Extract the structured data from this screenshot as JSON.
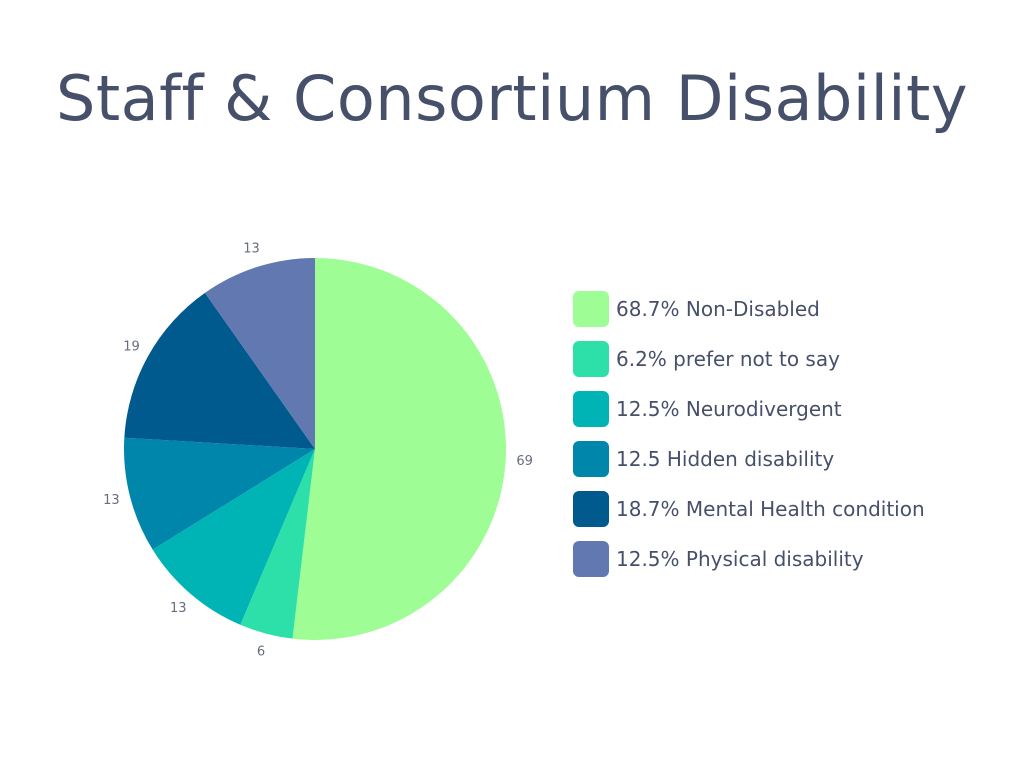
{
  "title": "Staff & Consortium Disability",
  "chart_data": {
    "type": "pie",
    "start_angle_deg": 0,
    "direction": "clockwise",
    "slices": [
      {
        "label": "Non-Disabled",
        "value": 69,
        "value_label": "69",
        "legend": "68.7% Non-Disabled",
        "color": "#9ffd95"
      },
      {
        "label": "prefer not to say",
        "value": 6,
        "value_label": "6",
        "legend": "6.2% prefer not to say",
        "color": "#2de0a9"
      },
      {
        "label": "Neurodivergent",
        "value": 13,
        "value_label": "13",
        "legend": "12.5% Neurodivergent",
        "color": "#00b4b6"
      },
      {
        "label": "Hidden disability",
        "value": 13,
        "value_label": "13",
        "legend": "12.5 Hidden disability",
        "color": "#0086ab"
      },
      {
        "label": "Mental Health condition",
        "value": 19,
        "value_label": "19",
        "legend": "18.7% Mental Health condition",
        "color": "#005a8e"
      },
      {
        "label": "Physical disability",
        "value": 13,
        "value_label": "13",
        "legend": "12.5% Physical disability",
        "color": "#6278b0"
      }
    ],
    "legend_position": "right"
  }
}
